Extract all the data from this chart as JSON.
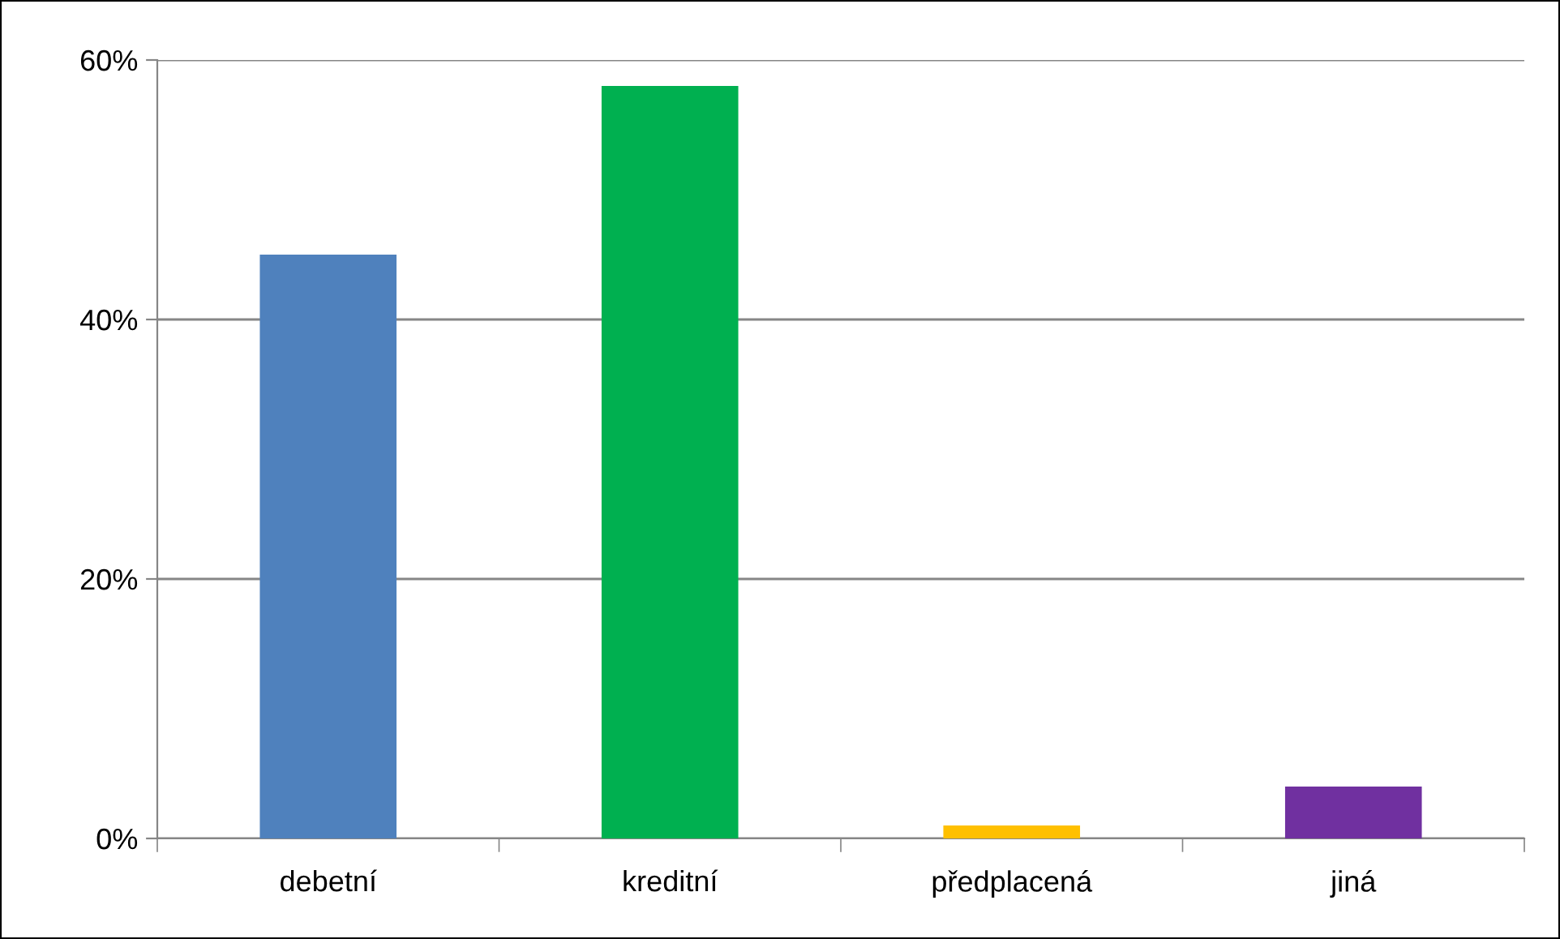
{
  "chart_data": {
    "type": "bar",
    "categories": [
      "debetní",
      "kreditní",
      "předplacená",
      "jiná"
    ],
    "values": [
      45,
      58,
      1,
      4
    ],
    "colors": [
      "#4f81bd",
      "#00b050",
      "#ffc000",
      "#7030a0"
    ],
    "ylim": [
      0,
      60
    ],
    "yticks": [
      {
        "value": 0,
        "label": "0%"
      },
      {
        "value": 20,
        "label": "20%"
      },
      {
        "value": 40,
        "label": "40%"
      },
      {
        "value": 60,
        "label": "60%"
      }
    ],
    "grid": "y",
    "legend": false
  }
}
